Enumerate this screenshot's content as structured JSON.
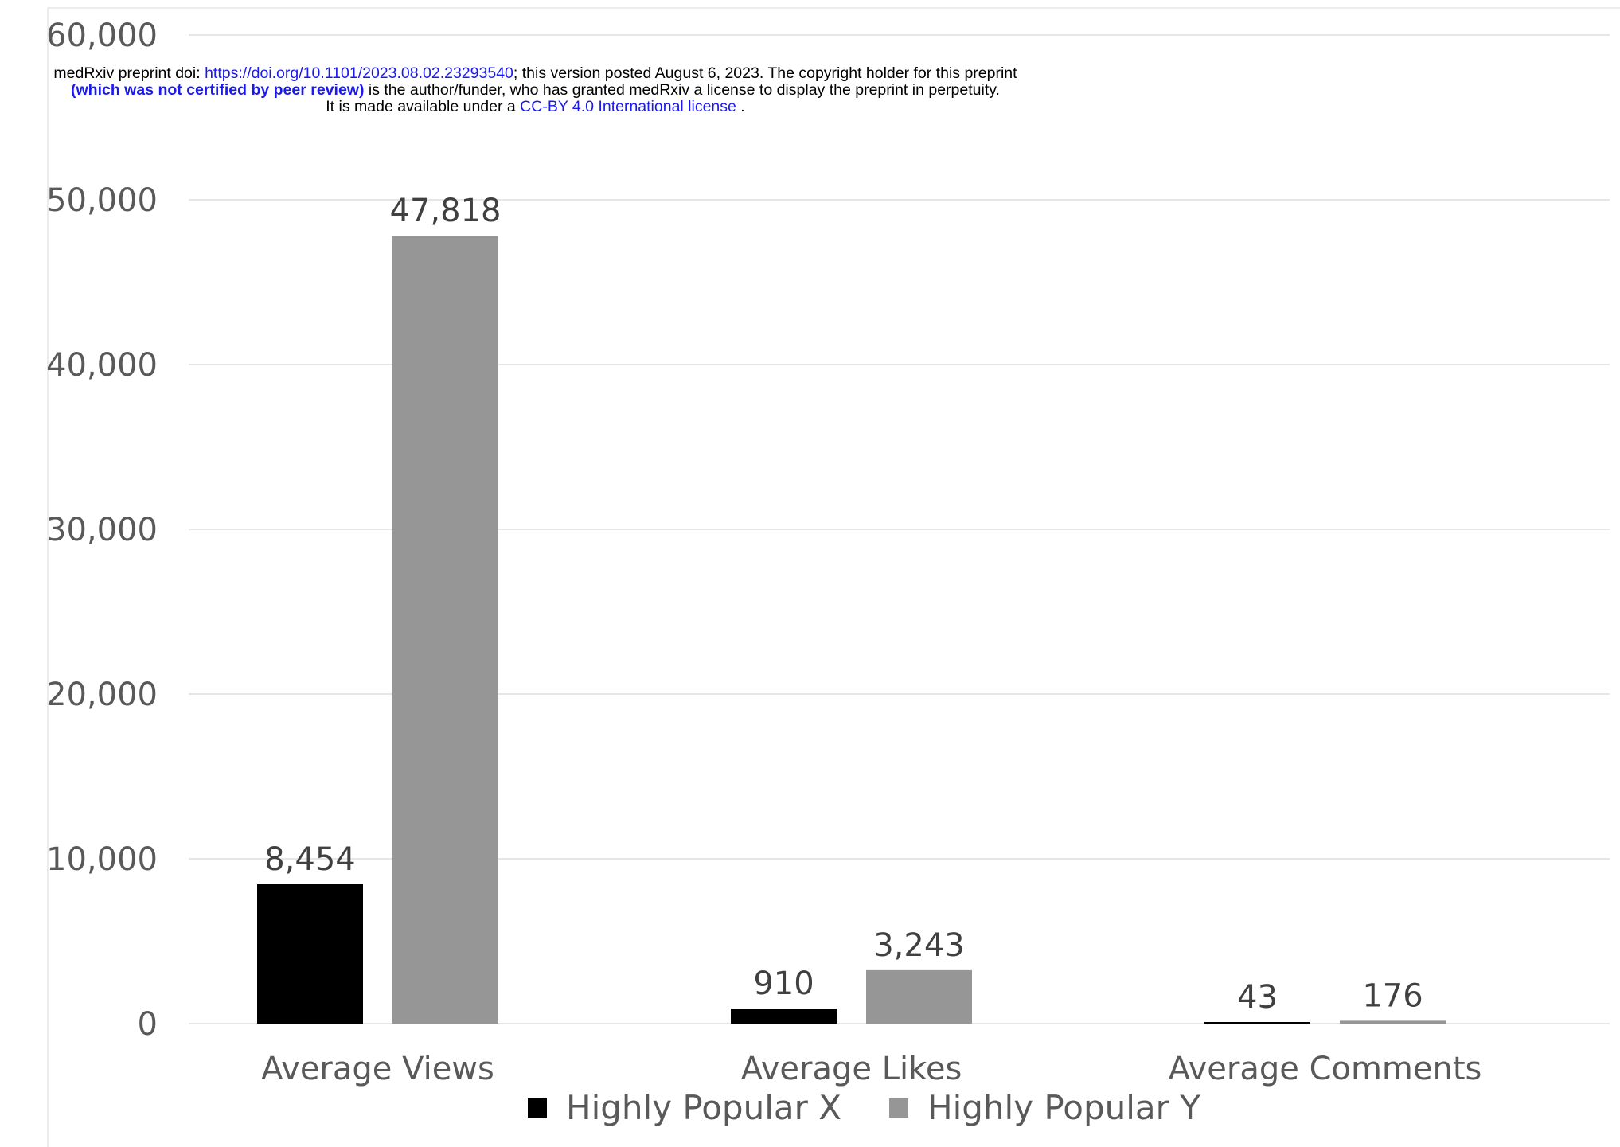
{
  "preprint_header": {
    "line1_prefix": "medRxiv preprint doi: ",
    "doi_link": "https://doi.org/10.1101/2023.08.02.23293540",
    "line1_suffix": "; this version posted August 6, 2023. The copyright holder for this preprint",
    "line2_bold": "(which was not certified by peer review)",
    "line2_rest": " is the author/funder, who has granted medRxiv a license to display the preprint in perpetuity.",
    "line3_prefix": "It is made available under a ",
    "license_link": "CC-BY 4.0 International license",
    "line3_suffix": " ."
  },
  "chart_data": {
    "type": "bar",
    "title": "",
    "xlabel": "",
    "ylabel": "",
    "categories": [
      "Average Views",
      "Average Likes",
      "Average Comments"
    ],
    "series": [
      {
        "name": "Highly Popular X",
        "values": [
          8454,
          910,
          43
        ],
        "color": "#000000"
      },
      {
        "name": "Highly Popular Y",
        "values": [
          47818,
          3243,
          176
        ],
        "color": "#969696"
      }
    ],
    "data_labels": [
      [
        "8,454",
        "910",
        "43"
      ],
      [
        "47,818",
        "3,243",
        "176"
      ]
    ],
    "ylim": [
      0,
      60000
    ],
    "yticks": [
      0,
      10000,
      20000,
      30000,
      40000,
      50000,
      60000
    ],
    "ytick_labels": [
      "0",
      "10,000",
      "20,000",
      "30,000",
      "40,000",
      "50,000",
      "60,000"
    ],
    "grid": true,
    "legend_position": "bottom"
  }
}
